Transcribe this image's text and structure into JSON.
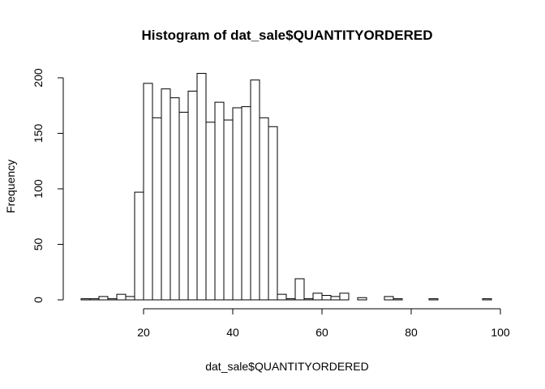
{
  "chart_data": {
    "type": "bar",
    "title": "Histogram of dat_sale$QUANTITYORDERED",
    "xlabel": "dat_sale$QUANTITYORDERED",
    "ylabel": "Frequency",
    "xlim": [
      6,
      98
    ],
    "ylim": [
      0,
      205
    ],
    "bin_width": 2,
    "bin_start": 6,
    "x_ticks": [
      20,
      40,
      60,
      80,
      100
    ],
    "y_ticks": [
      0,
      50,
      100,
      150,
      200
    ],
    "values": [
      1,
      1,
      3,
      1,
      5,
      3,
      97,
      195,
      164,
      190,
      182,
      169,
      188,
      204,
      160,
      178,
      162,
      173,
      174,
      198,
      164,
      156,
      5,
      1,
      19,
      1,
      6,
      4,
      3,
      6,
      0,
      2,
      0,
      0,
      3,
      1,
      0,
      0,
      0,
      1,
      0,
      0,
      0,
      0,
      0,
      1
    ],
    "grid": false,
    "colors": {
      "bar_fill": "#ffffff",
      "bar_stroke": "#000000"
    }
  }
}
